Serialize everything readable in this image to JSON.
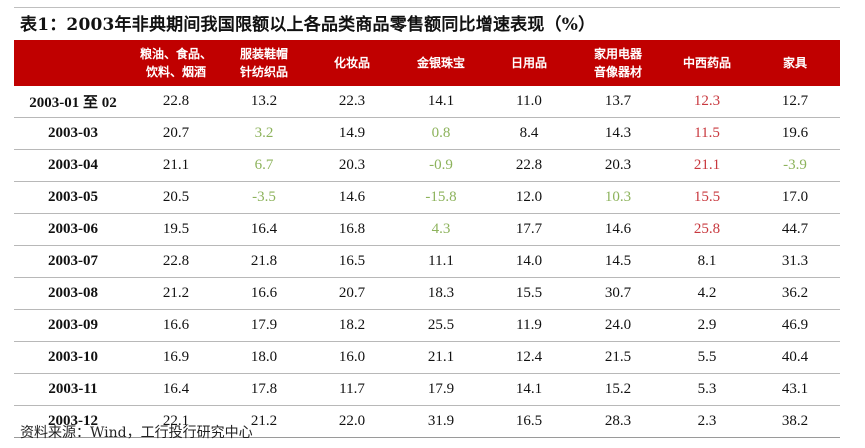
{
  "title": "表1：2003年非典期间我国限额以上各品类商品零售额同比增速表现（%）",
  "headers": [
    "",
    "粮油、食品、\n饮料、烟酒",
    "服装鞋帽\n针纺织品",
    "化妆品",
    "金银珠宝",
    "日用品",
    "家用电器\n音像器材",
    "中西药品",
    "家具"
  ],
  "rows": [
    {
      "date": "2003-01 至 02",
      "values": [
        "22.8",
        "13.2",
        "22.3",
        "14.1",
        "11.0",
        "13.7",
        "12.3",
        "12.7"
      ]
    },
    {
      "date": "2003-03",
      "values": [
        "20.7",
        "3.2",
        "14.9",
        "0.8",
        "8.4",
        "14.3",
        "11.5",
        "19.6"
      ]
    },
    {
      "date": "2003-04",
      "values": [
        "21.1",
        "6.7",
        "20.3",
        "-0.9",
        "22.8",
        "20.3",
        "21.1",
        "-3.9"
      ]
    },
    {
      "date": "2003-05",
      "values": [
        "20.5",
        "-3.5",
        "14.6",
        "-15.8",
        "12.0",
        "10.3",
        "15.5",
        "17.0"
      ]
    },
    {
      "date": "2003-06",
      "values": [
        "19.5",
        "16.4",
        "16.8",
        "4.3",
        "17.7",
        "14.6",
        "25.8",
        "44.7"
      ]
    },
    {
      "date": "2003-07",
      "values": [
        "22.8",
        "21.8",
        "16.5",
        "11.1",
        "14.0",
        "14.5",
        "8.1",
        "31.3"
      ]
    },
    {
      "date": "2003-08",
      "values": [
        "21.2",
        "16.6",
        "20.7",
        "18.3",
        "15.5",
        "30.7",
        "4.2",
        "36.2"
      ]
    },
    {
      "date": "2003-09",
      "values": [
        "16.6",
        "17.9",
        "18.2",
        "25.5",
        "11.9",
        "24.0",
        "2.9",
        "46.9"
      ]
    },
    {
      "date": "2003-10",
      "values": [
        "16.9",
        "18.0",
        "16.0",
        "21.1",
        "12.4",
        "21.5",
        "5.5",
        "40.4"
      ]
    },
    {
      "date": "2003-11",
      "values": [
        "16.4",
        "17.8",
        "11.7",
        "17.9",
        "14.1",
        "15.2",
        "5.3",
        "43.1"
      ]
    },
    {
      "date": "2003-12",
      "values": [
        "22.1",
        "21.2",
        "22.0",
        "31.9",
        "16.5",
        "28.3",
        "2.3",
        "38.2"
      ]
    }
  ],
  "highlights": {
    "red": [
      [
        0,
        6
      ],
      [
        1,
        6
      ],
      [
        2,
        6
      ],
      [
        3,
        6
      ],
      [
        4,
        6
      ]
    ],
    "green": [
      [
        1,
        1
      ],
      [
        1,
        3
      ],
      [
        2,
        1
      ],
      [
        2,
        3
      ],
      [
        2,
        7
      ],
      [
        3,
        1
      ],
      [
        3,
        3
      ],
      [
        3,
        5
      ],
      [
        4,
        3
      ]
    ]
  },
  "colors": {
    "header_bg": "#c00000",
    "red_text": "#c8383e",
    "green_text": "#8db35c"
  },
  "source": "资料来源：Wind，工行投行研究中心"
}
